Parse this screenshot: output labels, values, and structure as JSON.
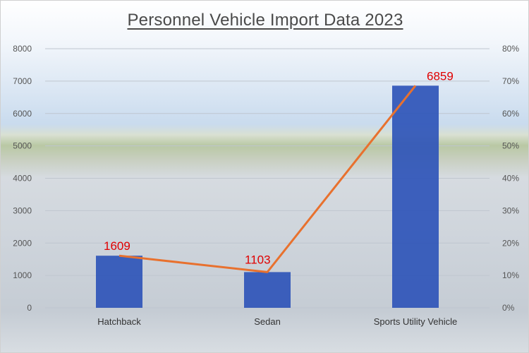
{
  "chart_data": {
    "type": "bar",
    "title": "Personnel Vehicle Import Data 2023",
    "categories": [
      "Hatchback",
      "Sedan",
      "Sports Utility Vehicle"
    ],
    "series": [
      {
        "type": "bar",
        "values": [
          1609,
          1103,
          6859
        ],
        "color": "#2f55b8"
      },
      {
        "type": "line",
        "values": [
          1609,
          1103,
          6859
        ],
        "color": "#e8712e"
      }
    ],
    "data_labels": [
      "1609",
      "1103",
      "6859"
    ],
    "ylim": [
      0,
      8000
    ],
    "y_ticks": [
      "0",
      "1000",
      "2000",
      "3000",
      "4000",
      "5000",
      "6000",
      "7000",
      "8000"
    ],
    "y2lim": [
      0,
      80
    ],
    "y2_ticks": [
      "0%",
      "10%",
      "20%",
      "30%",
      "40%",
      "50%",
      "60%",
      "70%",
      "80%"
    ],
    "grid": true,
    "legend": "none",
    "label_color": "#e00000"
  }
}
